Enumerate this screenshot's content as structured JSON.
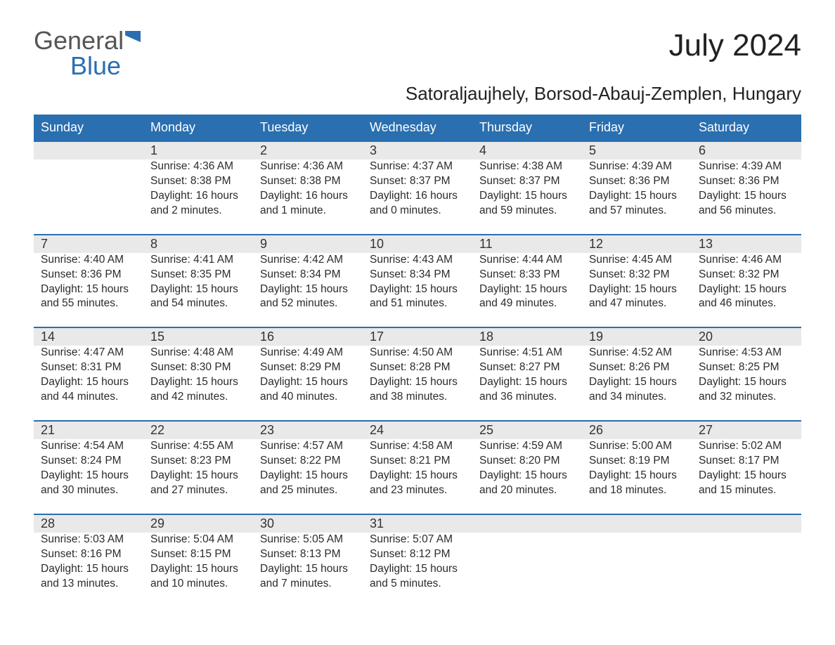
{
  "brand": {
    "word1": "General",
    "word2": "Blue"
  },
  "title": "July 2024",
  "subtitle": "Satoraljaujhely, Borsod-Abauj-Zemplen, Hungary",
  "colors": {
    "header_bg": "#2a6fb0",
    "header_text": "#ffffff",
    "daynum_bg": "#e9e9e9",
    "border_top": "#2a6fb0",
    "text": "#2b2b2b",
    "background": "#ffffff"
  },
  "fontsize": {
    "title": 44,
    "subtitle": 26,
    "header": 18,
    "daynum": 18,
    "body": 15.5
  },
  "weekdays": [
    "Sunday",
    "Monday",
    "Tuesday",
    "Wednesday",
    "Thursday",
    "Friday",
    "Saturday"
  ],
  "weeks": [
    [
      null,
      {
        "n": "1",
        "sr": "Sunrise: 4:36 AM",
        "ss": "Sunset: 8:38 PM",
        "d1": "Daylight: 16 hours",
        "d2": "and 2 minutes."
      },
      {
        "n": "2",
        "sr": "Sunrise: 4:36 AM",
        "ss": "Sunset: 8:38 PM",
        "d1": "Daylight: 16 hours",
        "d2": "and 1 minute."
      },
      {
        "n": "3",
        "sr": "Sunrise: 4:37 AM",
        "ss": "Sunset: 8:37 PM",
        "d1": "Daylight: 16 hours",
        "d2": "and 0 minutes."
      },
      {
        "n": "4",
        "sr": "Sunrise: 4:38 AM",
        "ss": "Sunset: 8:37 PM",
        "d1": "Daylight: 15 hours",
        "d2": "and 59 minutes."
      },
      {
        "n": "5",
        "sr": "Sunrise: 4:39 AM",
        "ss": "Sunset: 8:36 PM",
        "d1": "Daylight: 15 hours",
        "d2": "and 57 minutes."
      },
      {
        "n": "6",
        "sr": "Sunrise: 4:39 AM",
        "ss": "Sunset: 8:36 PM",
        "d1": "Daylight: 15 hours",
        "d2": "and 56 minutes."
      }
    ],
    [
      {
        "n": "7",
        "sr": "Sunrise: 4:40 AM",
        "ss": "Sunset: 8:36 PM",
        "d1": "Daylight: 15 hours",
        "d2": "and 55 minutes."
      },
      {
        "n": "8",
        "sr": "Sunrise: 4:41 AM",
        "ss": "Sunset: 8:35 PM",
        "d1": "Daylight: 15 hours",
        "d2": "and 54 minutes."
      },
      {
        "n": "9",
        "sr": "Sunrise: 4:42 AM",
        "ss": "Sunset: 8:34 PM",
        "d1": "Daylight: 15 hours",
        "d2": "and 52 minutes."
      },
      {
        "n": "10",
        "sr": "Sunrise: 4:43 AM",
        "ss": "Sunset: 8:34 PM",
        "d1": "Daylight: 15 hours",
        "d2": "and 51 minutes."
      },
      {
        "n": "11",
        "sr": "Sunrise: 4:44 AM",
        "ss": "Sunset: 8:33 PM",
        "d1": "Daylight: 15 hours",
        "d2": "and 49 minutes."
      },
      {
        "n": "12",
        "sr": "Sunrise: 4:45 AM",
        "ss": "Sunset: 8:32 PM",
        "d1": "Daylight: 15 hours",
        "d2": "and 47 minutes."
      },
      {
        "n": "13",
        "sr": "Sunrise: 4:46 AM",
        "ss": "Sunset: 8:32 PM",
        "d1": "Daylight: 15 hours",
        "d2": "and 46 minutes."
      }
    ],
    [
      {
        "n": "14",
        "sr": "Sunrise: 4:47 AM",
        "ss": "Sunset: 8:31 PM",
        "d1": "Daylight: 15 hours",
        "d2": "and 44 minutes."
      },
      {
        "n": "15",
        "sr": "Sunrise: 4:48 AM",
        "ss": "Sunset: 8:30 PM",
        "d1": "Daylight: 15 hours",
        "d2": "and 42 minutes."
      },
      {
        "n": "16",
        "sr": "Sunrise: 4:49 AM",
        "ss": "Sunset: 8:29 PM",
        "d1": "Daylight: 15 hours",
        "d2": "and 40 minutes."
      },
      {
        "n": "17",
        "sr": "Sunrise: 4:50 AM",
        "ss": "Sunset: 8:28 PM",
        "d1": "Daylight: 15 hours",
        "d2": "and 38 minutes."
      },
      {
        "n": "18",
        "sr": "Sunrise: 4:51 AM",
        "ss": "Sunset: 8:27 PM",
        "d1": "Daylight: 15 hours",
        "d2": "and 36 minutes."
      },
      {
        "n": "19",
        "sr": "Sunrise: 4:52 AM",
        "ss": "Sunset: 8:26 PM",
        "d1": "Daylight: 15 hours",
        "d2": "and 34 minutes."
      },
      {
        "n": "20",
        "sr": "Sunrise: 4:53 AM",
        "ss": "Sunset: 8:25 PM",
        "d1": "Daylight: 15 hours",
        "d2": "and 32 minutes."
      }
    ],
    [
      {
        "n": "21",
        "sr": "Sunrise: 4:54 AM",
        "ss": "Sunset: 8:24 PM",
        "d1": "Daylight: 15 hours",
        "d2": "and 30 minutes."
      },
      {
        "n": "22",
        "sr": "Sunrise: 4:55 AM",
        "ss": "Sunset: 8:23 PM",
        "d1": "Daylight: 15 hours",
        "d2": "and 27 minutes."
      },
      {
        "n": "23",
        "sr": "Sunrise: 4:57 AM",
        "ss": "Sunset: 8:22 PM",
        "d1": "Daylight: 15 hours",
        "d2": "and 25 minutes."
      },
      {
        "n": "24",
        "sr": "Sunrise: 4:58 AM",
        "ss": "Sunset: 8:21 PM",
        "d1": "Daylight: 15 hours",
        "d2": "and 23 minutes."
      },
      {
        "n": "25",
        "sr": "Sunrise: 4:59 AM",
        "ss": "Sunset: 8:20 PM",
        "d1": "Daylight: 15 hours",
        "d2": "and 20 minutes."
      },
      {
        "n": "26",
        "sr": "Sunrise: 5:00 AM",
        "ss": "Sunset: 8:19 PM",
        "d1": "Daylight: 15 hours",
        "d2": "and 18 minutes."
      },
      {
        "n": "27",
        "sr": "Sunrise: 5:02 AM",
        "ss": "Sunset: 8:17 PM",
        "d1": "Daylight: 15 hours",
        "d2": "and 15 minutes."
      }
    ],
    [
      {
        "n": "28",
        "sr": "Sunrise: 5:03 AM",
        "ss": "Sunset: 8:16 PM",
        "d1": "Daylight: 15 hours",
        "d2": "and 13 minutes."
      },
      {
        "n": "29",
        "sr": "Sunrise: 5:04 AM",
        "ss": "Sunset: 8:15 PM",
        "d1": "Daylight: 15 hours",
        "d2": "and 10 minutes."
      },
      {
        "n": "30",
        "sr": "Sunrise: 5:05 AM",
        "ss": "Sunset: 8:13 PM",
        "d1": "Daylight: 15 hours",
        "d2": "and 7 minutes."
      },
      {
        "n": "31",
        "sr": "Sunrise: 5:07 AM",
        "ss": "Sunset: 8:12 PM",
        "d1": "Daylight: 15 hours",
        "d2": "and 5 minutes."
      },
      null,
      null,
      null
    ]
  ]
}
